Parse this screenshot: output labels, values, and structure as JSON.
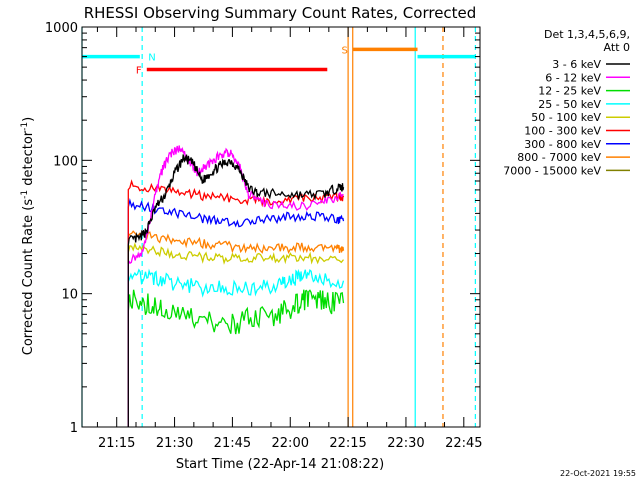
{
  "chart_data": {
    "type": "line",
    "title": "RHESSI Observing Summary Count Rates, Corrected",
    "xlabel": "Start Time (22-Apr-14 21:08:22)",
    "ylabel_main": "Corrected Count Rate (s",
    "ylabel_sup1": "-1",
    "ylabel_mid": " detector",
    "ylabel_sup2": "-1",
    "ylabel_end": ")",
    "y_scale": "log",
    "ylim": [
      1,
      1000
    ],
    "xlim_minutes": [
      21.1,
      22.82
    ],
    "x_ticks": [
      {
        "t": 21.25,
        "label": "21:15"
      },
      {
        "t": 21.5,
        "label": "21:30"
      },
      {
        "t": 21.75,
        "label": "21:45"
      },
      {
        "t": 22.0,
        "label": "22:00"
      },
      {
        "t": 22.25,
        "label": "22:15"
      },
      {
        "t": 22.5,
        "label": "22:30"
      },
      {
        "t": 22.75,
        "label": "22:45"
      }
    ],
    "y_ticks": [
      {
        "v": 1,
        "label": "1"
      },
      {
        "v": 10,
        "label": "10"
      },
      {
        "v": 100,
        "label": "100"
      },
      {
        "v": 1000,
        "label": "1000"
      }
    ],
    "legend_header": [
      "Det 1,3,4,5,6,9,",
      "Att 0"
    ],
    "legend_position": "right",
    "series": [
      {
        "name": "3 - 6 keV",
        "color": "#000000",
        "points": [
          [
            21.3,
            25
          ],
          [
            21.35,
            26
          ],
          [
            21.38,
            30
          ],
          [
            21.42,
            45
          ],
          [
            21.46,
            55
          ],
          [
            21.5,
            80
          ],
          [
            21.54,
            105
          ],
          [
            21.58,
            95
          ],
          [
            21.62,
            70
          ],
          [
            21.66,
            82
          ],
          [
            21.7,
            92
          ],
          [
            21.74,
            100
          ],
          [
            21.78,
            85
          ],
          [
            21.82,
            62
          ],
          [
            21.86,
            57
          ],
          [
            21.95,
            56
          ],
          [
            22.05,
            55
          ],
          [
            22.15,
            56
          ],
          [
            22.2,
            62
          ],
          [
            22.23,
            63
          ]
        ]
      },
      {
        "name": "6 - 12 keV",
        "color": "#ff00ff",
        "points": [
          [
            21.3,
            18
          ],
          [
            21.36,
            20
          ],
          [
            21.4,
            40
          ],
          [
            21.44,
            80
          ],
          [
            21.48,
            110
          ],
          [
            21.52,
            125
          ],
          [
            21.56,
            100
          ],
          [
            21.6,
            80
          ],
          [
            21.65,
            95
          ],
          [
            21.7,
            110
          ],
          [
            21.74,
            115
          ],
          [
            21.78,
            90
          ],
          [
            21.82,
            56
          ],
          [
            21.9,
            47
          ],
          [
            22.0,
            45
          ],
          [
            22.1,
            46
          ],
          [
            22.18,
            52
          ],
          [
            22.23,
            55
          ]
        ]
      },
      {
        "name": "12 - 25 keV",
        "color": "#00dd00",
        "points": [
          [
            21.3,
            9
          ],
          [
            21.38,
            8.5
          ],
          [
            21.45,
            7.5
          ],
          [
            21.55,
            6.5
          ],
          [
            21.65,
            6
          ],
          [
            21.75,
            6
          ],
          [
            21.85,
            6.5
          ],
          [
            21.95,
            7
          ],
          [
            22.03,
            8.5
          ],
          [
            22.08,
            9
          ],
          [
            22.15,
            8.5
          ],
          [
            22.23,
            8.5
          ]
        ]
      },
      {
        "name": "25 - 50 keV",
        "color": "#00ffff",
        "points": [
          [
            21.3,
            14
          ],
          [
            21.38,
            13.5
          ],
          [
            21.45,
            12.5
          ],
          [
            21.55,
            11.5
          ],
          [
            21.65,
            11
          ],
          [
            21.75,
            11
          ],
          [
            21.85,
            11
          ],
          [
            21.95,
            11.5
          ],
          [
            22.0,
            12
          ],
          [
            22.05,
            14
          ],
          [
            22.12,
            13
          ],
          [
            22.23,
            12.5
          ]
        ]
      },
      {
        "name": "50 - 100 keV",
        "color": "#cccc00",
        "points": [
          [
            21.3,
            22
          ],
          [
            21.4,
            21
          ],
          [
            21.5,
            20
          ],
          [
            21.6,
            19
          ],
          [
            21.7,
            18.5
          ],
          [
            21.8,
            18.5
          ],
          [
            21.9,
            18.5
          ],
          [
            22.0,
            18.5
          ],
          [
            22.1,
            18.5
          ],
          [
            22.23,
            18
          ]
        ]
      },
      {
        "name": "100 - 300 keV",
        "color": "#ff0000",
        "points": [
          [
            21.3,
            65
          ],
          [
            21.4,
            62
          ],
          [
            21.5,
            58
          ],
          [
            21.6,
            55
          ],
          [
            21.7,
            52
          ],
          [
            21.8,
            50
          ],
          [
            21.9,
            50
          ],
          [
            22.0,
            51
          ],
          [
            22.1,
            52
          ],
          [
            22.2,
            54
          ],
          [
            22.23,
            53
          ]
        ]
      },
      {
        "name": "300 - 800 keV",
        "color": "#0000ff",
        "points": [
          [
            21.3,
            48
          ],
          [
            21.4,
            44
          ],
          [
            21.5,
            40
          ],
          [
            21.6,
            37
          ],
          [
            21.7,
            35
          ],
          [
            21.8,
            34
          ],
          [
            21.9,
            36
          ],
          [
            22.0,
            38
          ],
          [
            22.1,
            38
          ],
          [
            22.2,
            36
          ],
          [
            22.23,
            35
          ]
        ]
      },
      {
        "name": "800 - 7000 keV",
        "color": "#ff8000",
        "points": [
          [
            21.3,
            29
          ],
          [
            21.4,
            27
          ],
          [
            21.5,
            25
          ],
          [
            21.6,
            24
          ],
          [
            21.7,
            23
          ],
          [
            21.8,
            22
          ],
          [
            21.9,
            22
          ],
          [
            22.0,
            22
          ],
          [
            22.1,
            22.5
          ],
          [
            22.2,
            22
          ],
          [
            22.23,
            21
          ]
        ]
      },
      {
        "name": "7000 - 15000 keV",
        "color": "#808000",
        "points": []
      }
    ],
    "flags": [
      {
        "label": "N",
        "color": "#00ffff",
        "value": 600,
        "segments": [
          [
            21.1,
            21.35
          ],
          [
            22.55,
            22.8
          ]
        ]
      },
      {
        "label": "F",
        "color": "#ff0000",
        "value": 480,
        "segments": [
          [
            21.38,
            22.16
          ]
        ]
      },
      {
        "label": "S",
        "color": "#ff8000",
        "value": 680,
        "segments": [
          [
            22.27,
            22.55
          ]
        ]
      }
    ],
    "vlines": [
      {
        "t": 21.1,
        "color": "#00ffff",
        "dashed": false
      },
      {
        "t": 21.36,
        "color": "#00ffff",
        "dashed": true
      },
      {
        "t": 22.25,
        "color": "#ff8000",
        "dashed": false
      },
      {
        "t": 22.27,
        "color": "#ff8000",
        "dashed": false
      },
      {
        "t": 22.54,
        "color": "#00ffff",
        "dashed": false
      },
      {
        "t": 22.66,
        "color": "#ff8000",
        "dashed": true
      },
      {
        "t": 22.8,
        "color": "#00ffff",
        "dashed": true
      }
    ]
  },
  "footer": {
    "timestamp": "22-Oct-2021 19:55"
  }
}
